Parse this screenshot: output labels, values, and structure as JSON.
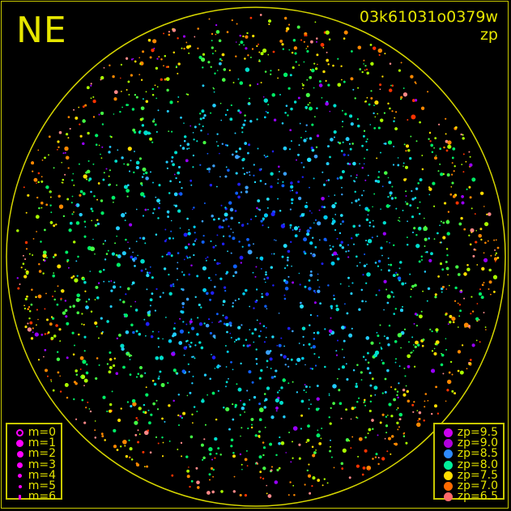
{
  "corner_label": "NE",
  "title": "03k61031o0379w",
  "subtitle": "zp",
  "mag_legend": [
    {
      "label": "m=0",
      "hollow": true
    },
    {
      "label": "m=1"
    },
    {
      "label": "m=2"
    },
    {
      "label": "m=3"
    },
    {
      "label": "m=4"
    },
    {
      "label": "m=5"
    },
    {
      "label": "m=6"
    }
  ],
  "chart_data": {
    "type": "scatter",
    "title": "03k61031o0379w",
    "subtitle": "zp",
    "color_variable": "zp",
    "size_variable": "m",
    "legend_placement": "bottom-left and bottom-right",
    "zp_legend": [
      {
        "label": "zp=9.5",
        "zp": 9.5,
        "color": "#cc00ee"
      },
      {
        "label": "zp=9.0",
        "zp": 9.0,
        "color": "#b000dd"
      },
      {
        "label": "zp=8.5",
        "zp": 8.5,
        "color": "#2e8bff"
      },
      {
        "label": "zp=8.0",
        "zp": 8.0,
        "color": "#00ee99"
      },
      {
        "label": "zp=7.5",
        "zp": 7.5,
        "color": "#ffdd00"
      },
      {
        "label": "zp=7.0",
        "zp": 7.0,
        "color": "#ff6a00"
      },
      {
        "label": "zp=6.5",
        "zp": 6.5,
        "color": "#ff6a6a"
      }
    ],
    "horizon_circle_color": "#d6d600"
  }
}
